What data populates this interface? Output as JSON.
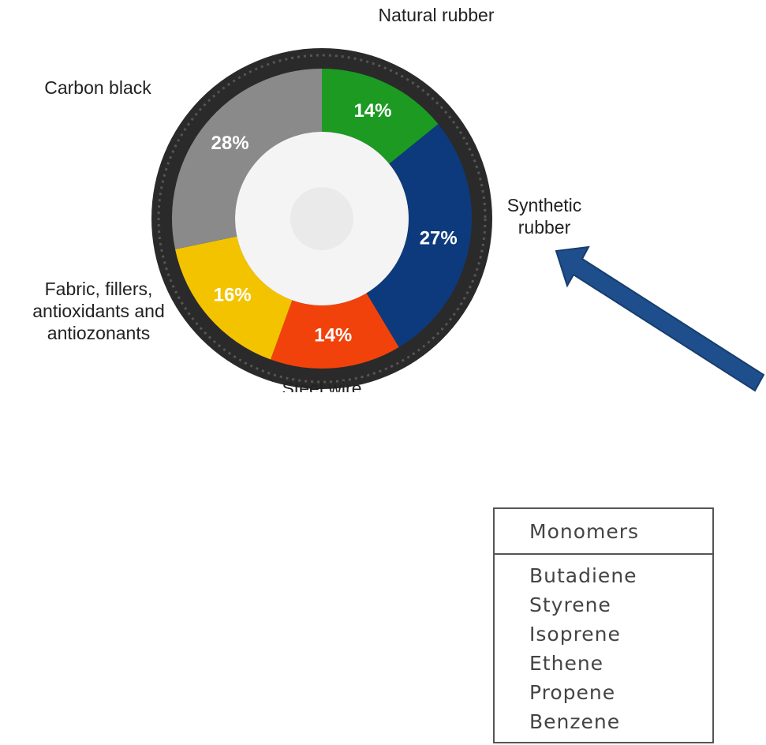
{
  "chart_data": {
    "type": "pie",
    "categories": [
      "Natural rubber",
      "Synthetic rubber",
      "Steel wire",
      "Fabric, fillers, antioxidants and antiozonants",
      "Carbon black"
    ],
    "values": [
      14,
      27,
      14,
      16,
      28
    ],
    "value_labels": [
      "14%",
      "27%",
      "14%",
      "16%",
      "28%"
    ],
    "colors": [
      "#1c9a22",
      "#0d3a7d",
      "#f2420c",
      "#f3c300",
      "#8a8a8a"
    ]
  },
  "table": {
    "header": "Monomers",
    "rows": [
      "Butadiene",
      "Styrene",
      "Isoprene",
      "Ethene",
      "Propene",
      "Benzene"
    ]
  }
}
